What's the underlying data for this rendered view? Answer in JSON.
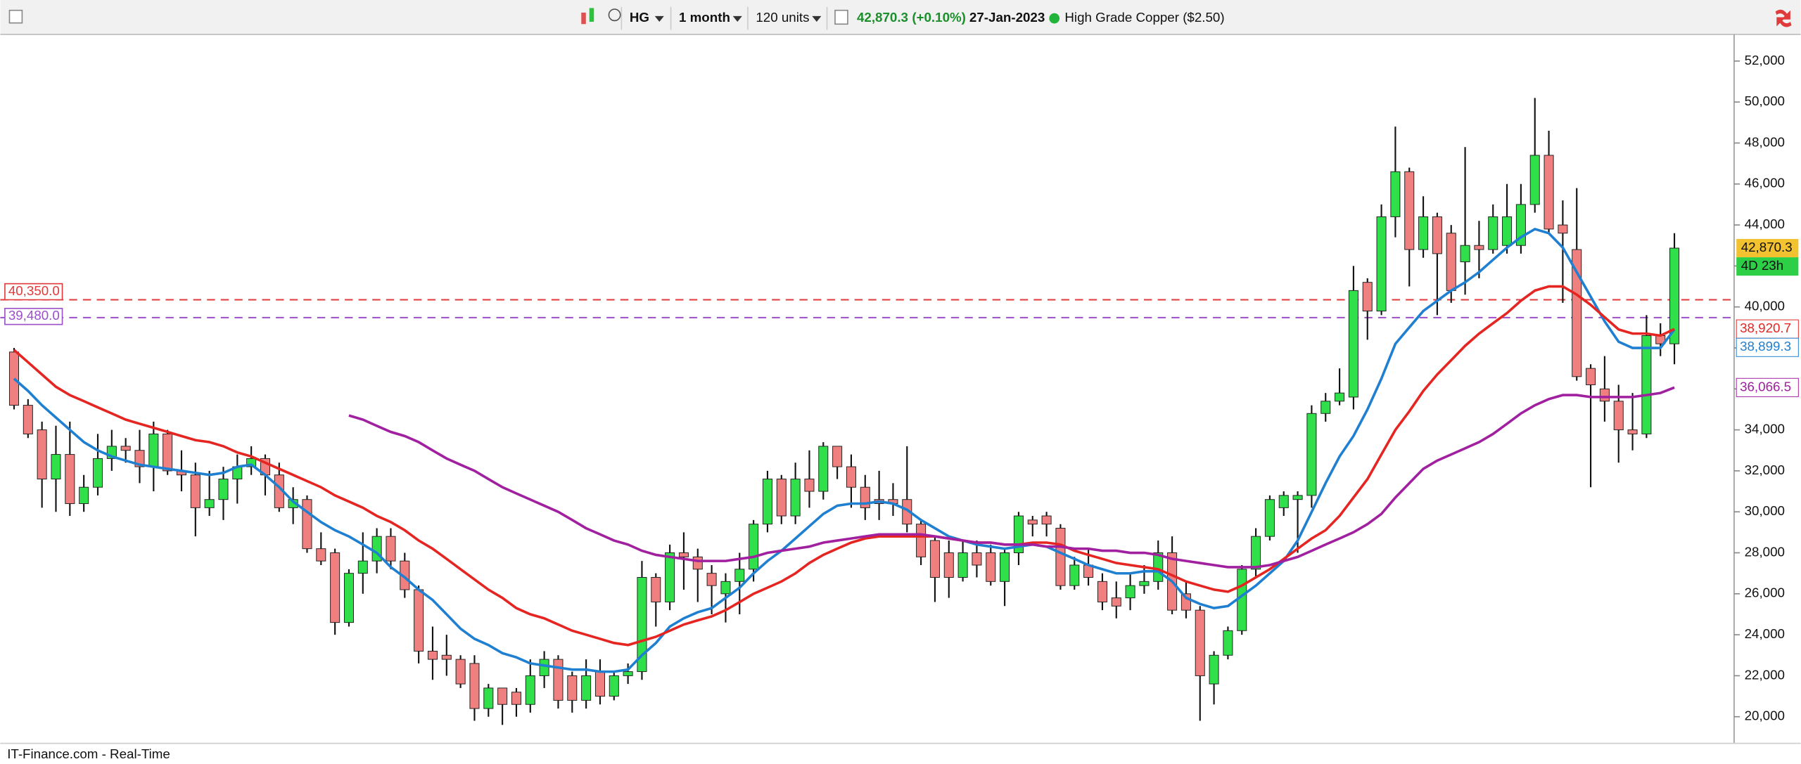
{
  "toolbar": {
    "symbol": "HG",
    "interval": "1 month",
    "units": "120 units",
    "price": "42,870.3",
    "change": "(+0.10%)",
    "date": "27-Jan-2023",
    "instrument": "High Grade Copper ($2.50)"
  },
  "footer": "IT-Finance.com - Real-Time",
  "chart_data": {
    "type": "candlestick",
    "up_color": "#2fe04a",
    "down_color": "#f07f7f",
    "ylim": [
      18700,
      53300
    ],
    "yticks": [
      {
        "value": 20000,
        "label": "20,000"
      },
      {
        "value": 22000,
        "label": "22,000"
      },
      {
        "value": 24000,
        "label": "24,000"
      },
      {
        "value": 26000,
        "label": "26,000"
      },
      {
        "value": 28000,
        "label": "28,000"
      },
      {
        "value": 30000,
        "label": "30,000"
      },
      {
        "value": 32000,
        "label": "32,000"
      },
      {
        "value": 34000,
        "label": "34,000"
      },
      {
        "value": 36000,
        "label": "36,000"
      },
      {
        "value": 38000,
        "label": "38,000"
      },
      {
        "value": 40000,
        "label": "40,000"
      },
      {
        "value": 42000,
        "label": "42,000"
      },
      {
        "value": 44000,
        "label": "44,000"
      },
      {
        "value": 46000,
        "label": "46,000"
      },
      {
        "value": 48000,
        "label": "48,000"
      },
      {
        "value": 50000,
        "label": "50,000"
      },
      {
        "value": 52000,
        "label": "52,000"
      }
    ],
    "open": [
      37800,
      35200,
      34000,
      31600,
      32800,
      30400,
      31200,
      32600,
      33200,
      33000,
      32200,
      33800,
      32000,
      31800,
      30200,
      30600,
      31600,
      32200,
      32600,
      31800,
      30200,
      30600,
      28200,
      28000,
      24600,
      27000,
      27600,
      28800,
      27600,
      26200,
      23200,
      23000,
      22800,
      22600,
      20400,
      21400,
      21200,
      20600,
      22000,
      22800,
      22000,
      20800,
      22200,
      21000,
      22000,
      22200,
      26800,
      25600,
      28000,
      27800,
      27000,
      26000,
      26600,
      27200,
      29400,
      31600,
      29800,
      31600,
      31000,
      33200,
      32200,
      31200,
      30600,
      30600,
      30600,
      29400,
      28600,
      28000,
      26800,
      28000,
      28000,
      26600,
      28000,
      29600,
      29800,
      29200,
      26400,
      27400,
      26600,
      25800,
      25800,
      26400,
      26600,
      28000,
      26000,
      25200,
      21600,
      23000,
      24200,
      27200,
      28800,
      30200,
      30600,
      30800,
      34800,
      35400,
      35600,
      41200,
      39800,
      44400,
      46600,
      42800,
      44400,
      43600,
      42200,
      43000,
      42800,
      43000,
      43000,
      45000,
      47400,
      44000,
      42800,
      37000,
      36000,
      35400,
      34000,
      33800,
      38600,
      38200
    ],
    "high": [
      38000,
      35500,
      34400,
      34200,
      34400,
      31800,
      33800,
      34000,
      33600,
      34000,
      34400,
      34000,
      33000,
      32400,
      32000,
      32200,
      32800,
      33200,
      32800,
      32400,
      31200,
      30800,
      29000,
      28200,
      27200,
      29000,
      29200,
      29200,
      28000,
      26400,
      24400,
      24000,
      23000,
      23000,
      21600,
      21400,
      21400,
      22800,
      23200,
      23000,
      22200,
      22800,
      22800,
      22200,
      22600,
      27600,
      27000,
      28400,
      29000,
      28200,
      27400,
      27000,
      28000,
      29600,
      32000,
      31800,
      32400,
      33000,
      33400,
      33200,
      32800,
      31800,
      32000,
      31400,
      33200,
      29600,
      28800,
      28600,
      28600,
      28600,
      28400,
      28200,
      30000,
      29800,
      30000,
      29400,
      27800,
      28200,
      27000,
      26600,
      27000,
      27400,
      28600,
      28800,
      26600,
      25400,
      23200,
      24400,
      27400,
      29200,
      30800,
      31000,
      31000,
      35200,
      35800,
      37000,
      42000,
      41400,
      45000,
      48800,
      46800,
      45400,
      44600,
      44000,
      47800,
      44200,
      45000,
      46000,
      46000,
      50200,
      48600,
      45200,
      45800,
      37200,
      37600,
      36200,
      35800,
      39600,
      39200,
      43600
    ],
    "low": [
      35000,
      33600,
      30200,
      30000,
      29800,
      30000,
      30800,
      32000,
      32400,
      31400,
      31000,
      31800,
      31000,
      28800,
      29800,
      29600,
      30400,
      31800,
      30800,
      30000,
      29400,
      28000,
      27400,
      24000,
      24400,
      26000,
      27000,
      27200,
      25800,
      22600,
      21800,
      22000,
      21400,
      19800,
      20000,
      19600,
      20000,
      20200,
      21400,
      20400,
      20200,
      20400,
      20600,
      20800,
      21600,
      21800,
      24400,
      25200,
      26200,
      25600,
      25000,
      24600,
      25000,
      26600,
      29000,
      29400,
      29400,
      30200,
      30600,
      31600,
      30200,
      29600,
      29600,
      29800,
      29000,
      27400,
      25600,
      25800,
      26600,
      26800,
      26400,
      25400,
      27400,
      28800,
      28800,
      26200,
      26200,
      26400,
      25200,
      24800,
      25200,
      26000,
      26200,
      25000,
      24800,
      19800,
      20600,
      22800,
      24000,
      26800,
      28600,
      29800,
      28000,
      30200,
      34400,
      35200,
      35000,
      38400,
      39600,
      43400,
      41000,
      42400,
      39600,
      40200,
      40600,
      41400,
      42600,
      42600,
      42600,
      44600,
      43600,
      40200,
      36400,
      31200,
      34400,
      32400,
      33000,
      33600,
      37600,
      37200
    ],
    "close": [
      35200,
      33800,
      31600,
      32800,
      30400,
      31200,
      32600,
      33200,
      33000,
      32200,
      33800,
      32000,
      31800,
      30200,
      30600,
      31600,
      32200,
      32600,
      31800,
      30200,
      30600,
      28200,
      27600,
      24600,
      27000,
      27600,
      28800,
      27600,
      26200,
      23200,
      22800,
      22800,
      21600,
      20400,
      21400,
      20600,
      20600,
      22000,
      22800,
      20800,
      20800,
      22000,
      21000,
      22000,
      22200,
      26800,
      25600,
      28000,
      27800,
      27200,
      26400,
      26600,
      27200,
      29400,
      31600,
      29800,
      31600,
      31000,
      33200,
      32200,
      31200,
      30200,
      30400,
      30400,
      29400,
      27800,
      26800,
      26800,
      28000,
      27400,
      26600,
      28000,
      29800,
      29400,
      29400,
      26400,
      27400,
      26800,
      25600,
      25400,
      26400,
      26600,
      28000,
      25200,
      25200,
      22000,
      23000,
      24200,
      27200,
      28800,
      30600,
      30800,
      30800,
      34800,
      35400,
      35800,
      40800,
      39800,
      44400,
      46600,
      42800,
      44400,
      42600,
      40800,
      43000,
      42800,
      44400,
      44400,
      45000,
      47400,
      43800,
      43600,
      36600,
      36200,
      35400,
      34000,
      33800,
      38600,
      38200,
      42870.3
    ],
    "series": [
      {
        "color": "#1f7fd0",
        "end_label": "38,899.3",
        "values": [
          36500,
          35900,
          35200,
          34600,
          34000,
          33400,
          33000,
          32700,
          32500,
          32300,
          32200,
          32100,
          32000,
          31900,
          31800,
          31900,
          32200,
          32300,
          31800,
          31200,
          30500,
          30000,
          29500,
          29100,
          28800,
          28400,
          28000,
          27300,
          26800,
          26200,
          25700,
          25000,
          24300,
          23800,
          23500,
          23100,
          22900,
          22600,
          22500,
          22400,
          22300,
          22300,
          22200,
          22200,
          22300,
          23000,
          23600,
          24400,
          24800,
          25100,
          25300,
          25800,
          26300,
          27000,
          27600,
          28100,
          28700,
          29300,
          29900,
          30300,
          30400,
          30400,
          30500,
          30400,
          30100,
          29600,
          29200,
          28800,
          28600,
          28400,
          28300,
          28200,
          28300,
          28400,
          28300,
          28000,
          27700,
          27400,
          27200,
          27000,
          27000,
          27100,
          27100,
          26600,
          25800,
          25500,
          25300,
          25400,
          25900,
          26400,
          27000,
          27600,
          28600,
          30000,
          31400,
          32700,
          33700,
          35000,
          36500,
          38200,
          39000,
          39800,
          40300,
          40800,
          41200,
          41700,
          42300,
          42900,
          43400,
          43800,
          43600,
          42900,
          41700,
          40500,
          39300,
          38300,
          38000,
          38000,
          38000,
          38899.3
        ]
      },
      {
        "color": "#e52521",
        "end_label": "38,920.7",
        "values": [
          37900,
          37300,
          36700,
          36100,
          35700,
          35400,
          35100,
          34800,
          34500,
          34300,
          34100,
          33900,
          33700,
          33500,
          33400,
          33200,
          32900,
          32700,
          32400,
          32100,
          31800,
          31500,
          31200,
          30800,
          30500,
          30200,
          29800,
          29500,
          29100,
          28600,
          28200,
          27700,
          27200,
          26700,
          26200,
          25800,
          25300,
          25000,
          24800,
          24500,
          24200,
          24000,
          23800,
          23600,
          23500,
          23700,
          23900,
          24200,
          24500,
          24700,
          24900,
          25200,
          25600,
          26000,
          26300,
          26600,
          27000,
          27500,
          27900,
          28200,
          28500,
          28700,
          28800,
          28800,
          28800,
          28800,
          28800,
          28700,
          28600,
          28500,
          28500,
          28400,
          28400,
          28500,
          28500,
          28400,
          28100,
          27900,
          27700,
          27500,
          27400,
          27300,
          27200,
          26900,
          26600,
          26400,
          26200,
          26100,
          26400,
          26800,
          27200,
          27700,
          28200,
          28700,
          29100,
          29800,
          30700,
          31600,
          32800,
          34000,
          34900,
          35900,
          36700,
          37400,
          38100,
          38700,
          39200,
          39700,
          40300,
          40800,
          41000,
          41000,
          40600,
          40100,
          39500,
          38900,
          38700,
          38700,
          38600,
          38920.7
        ]
      },
      {
        "color": "#a020a0",
        "end_label": "36,066.5",
        "values": [
          null,
          null,
          null,
          null,
          null,
          null,
          null,
          null,
          null,
          null,
          null,
          null,
          null,
          null,
          null,
          null,
          null,
          null,
          null,
          null,
          null,
          null,
          null,
          null,
          34700,
          34500,
          34200,
          33900,
          33700,
          33400,
          33000,
          32600,
          32300,
          32000,
          31600,
          31200,
          30900,
          30600,
          30300,
          30000,
          29600,
          29200,
          28900,
          28600,
          28400,
          28100,
          27900,
          27800,
          27700,
          27600,
          27600,
          27600,
          27700,
          27800,
          28000,
          28100,
          28200,
          28300,
          28500,
          28600,
          28700,
          28800,
          28900,
          28900,
          28900,
          28900,
          28800,
          28700,
          28600,
          28500,
          28500,
          28400,
          28400,
          28400,
          28300,
          28300,
          28200,
          28200,
          28100,
          28100,
          28000,
          28000,
          27900,
          27700,
          27600,
          27500,
          27400,
          27300,
          27300,
          27300,
          27400,
          27600,
          27800,
          28100,
          28400,
          28700,
          29000,
          29400,
          29900,
          30700,
          31400,
          32100,
          32500,
          32800,
          33100,
          33400,
          33800,
          34300,
          34800,
          35200,
          35500,
          35700,
          35700,
          35600,
          35600,
          35600,
          35600,
          35700,
          35800,
          36066.5
        ]
      }
    ],
    "levels": [
      {
        "value": 40350,
        "label": "40,350.0",
        "color": "#e03a3a"
      },
      {
        "value": 39480,
        "label": "39,480.0",
        "color": "#9b4fc8"
      }
    ],
    "price_tag": {
      "value": 42870.3,
      "label": "42,870.3",
      "color": "#f2c230"
    },
    "countdown": {
      "label": "4D 23h",
      "color": "#2ccf45"
    }
  }
}
